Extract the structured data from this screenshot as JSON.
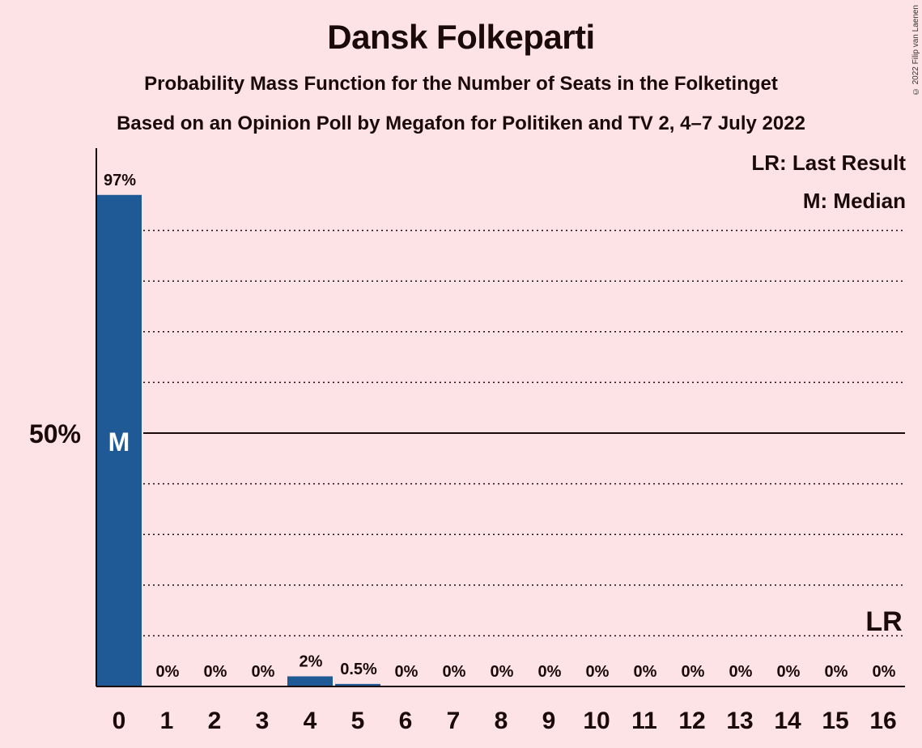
{
  "chart_data": {
    "type": "bar",
    "title": "Dansk Folkeparti",
    "subtitle": "Probability Mass Function for the Number of Seats in the Folketinget",
    "subtitle2": "Based on an Opinion Poll by Megafon for Politiken and TV 2, 4–7 July 2022",
    "copyright": "© 2022 Filip van Laenen",
    "categories": [
      "0",
      "1",
      "2",
      "3",
      "4",
      "5",
      "6",
      "7",
      "8",
      "9",
      "10",
      "11",
      "12",
      "13",
      "14",
      "15",
      "16"
    ],
    "values": [
      97,
      0,
      0,
      0,
      2,
      0.5,
      0,
      0,
      0,
      0,
      0,
      0,
      0,
      0,
      0,
      0,
      0
    ],
    "labels": [
      "97%",
      "0%",
      "0%",
      "0%",
      "2%",
      "0.5%",
      "0%",
      "0%",
      "0%",
      "0%",
      "0%",
      "0%",
      "0%",
      "0%",
      "0%",
      "0%",
      "0%"
    ],
    "ylim": [
      0,
      106
    ],
    "y_ticks": [
      {
        "value": 50,
        "label": "50%"
      }
    ],
    "gridlines": [
      10,
      20,
      30,
      40,
      60,
      70,
      80,
      90
    ],
    "median_seat": "0",
    "median_label": "M",
    "last_result_seat": "16",
    "last_result_label": "LR",
    "legend": [
      "LR: Last Result",
      "M: Median"
    ],
    "legend_position": "top-right",
    "bar_color": "#1f5a96"
  }
}
